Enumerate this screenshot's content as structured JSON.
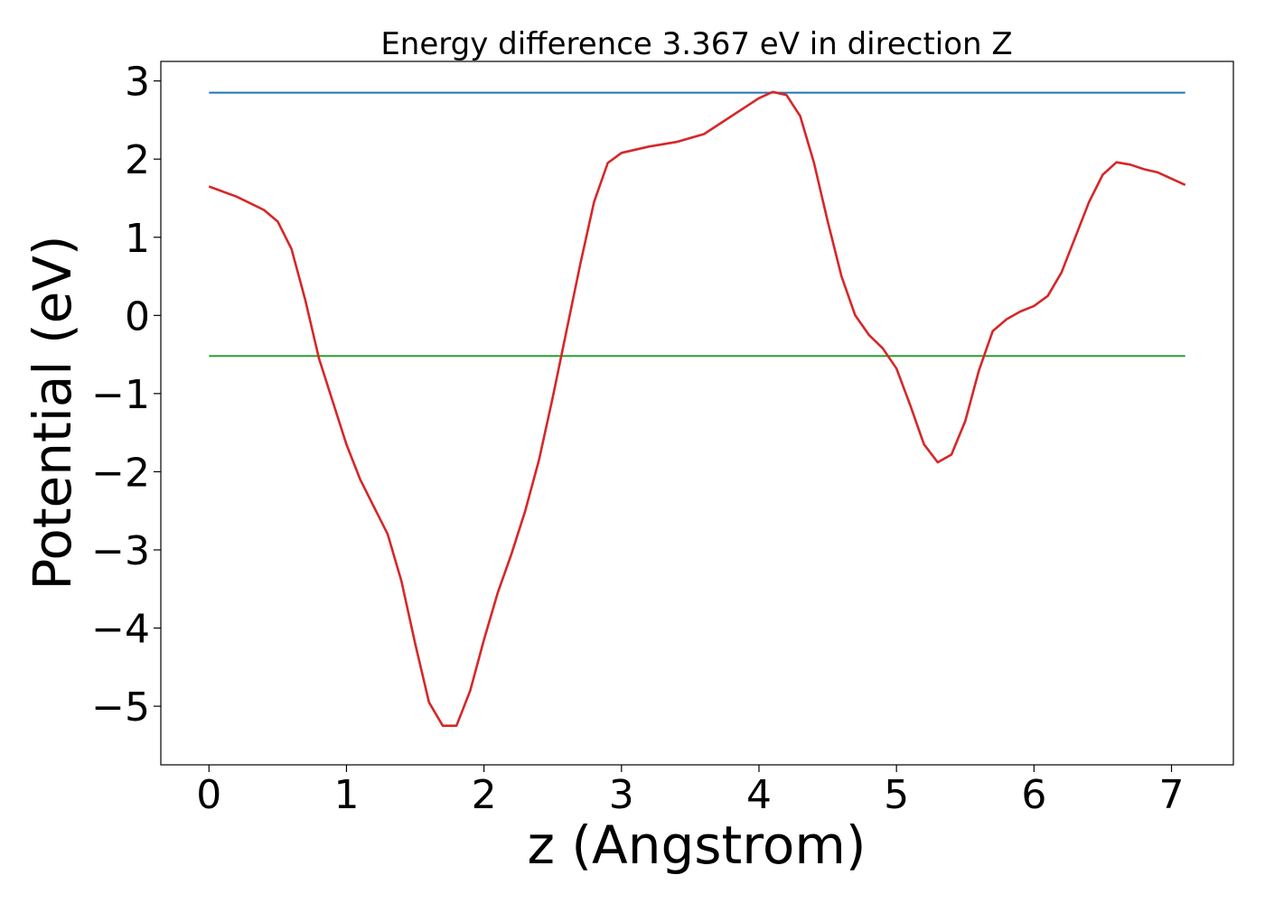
{
  "chart_data": {
    "type": "line",
    "title": "Energy difference 3.367 eV in direction Z",
    "xlabel": "z (Angstrom)",
    "ylabel": "Potential (eV)",
    "xlim": [
      -0.35,
      7.45
    ],
    "ylim": [
      -5.75,
      3.25
    ],
    "xticks": [
      0,
      1,
      2,
      3,
      4,
      5,
      6,
      7
    ],
    "xtick_labels": [
      "0",
      "1",
      "2",
      "3",
      "4",
      "5",
      "6",
      "7"
    ],
    "yticks": [
      3,
      2,
      1,
      0,
      -1,
      -2,
      -3,
      -4,
      -5
    ],
    "ytick_labels": [
      "3",
      "2",
      "1",
      "0",
      "−1",
      "−2",
      "−3",
      "−4",
      "−5"
    ],
    "grid": false,
    "series": [
      {
        "color": "#1f77b4",
        "x": [
          0,
          7.1
        ],
        "y": [
          2.85,
          2.85
        ]
      },
      {
        "color": "#2ca02c",
        "x": [
          0,
          7.1
        ],
        "y": [
          -0.52,
          -0.52
        ]
      },
      {
        "color": "#d62728",
        "x": [
          0,
          0.2,
          0.4,
          0.5,
          0.6,
          0.7,
          0.8,
          0.9,
          1.0,
          1.1,
          1.2,
          1.3,
          1.4,
          1.5,
          1.6,
          1.7,
          1.8,
          1.9,
          2.0,
          2.1,
          2.2,
          2.3,
          2.4,
          2.5,
          2.6,
          2.7,
          2.8,
          2.9,
          3.0,
          3.1,
          3.2,
          3.4,
          3.6,
          3.8,
          4.0,
          4.1,
          4.2,
          4.3,
          4.4,
          4.5,
          4.6,
          4.7,
          4.8,
          4.9,
          5.0,
          5.1,
          5.2,
          5.3,
          5.4,
          5.5,
          5.6,
          5.7,
          5.8,
          5.9,
          6.0,
          6.1,
          6.2,
          6.3,
          6.4,
          6.5,
          6.6,
          6.7,
          6.8,
          6.9,
          7.1
        ],
        "y": [
          1.65,
          1.52,
          1.35,
          1.2,
          0.85,
          0.2,
          -0.55,
          -1.1,
          -1.65,
          -2.1,
          -2.45,
          -2.8,
          -3.4,
          -4.2,
          -4.95,
          -5.25,
          -5.25,
          -4.8,
          -4.15,
          -3.55,
          -3.05,
          -2.5,
          -1.85,
          -1.05,
          -0.2,
          0.65,
          1.45,
          1.95,
          2.08,
          2.12,
          2.16,
          2.22,
          2.32,
          2.55,
          2.78,
          2.86,
          2.82,
          2.55,
          1.95,
          1.2,
          0.5,
          0.0,
          -0.25,
          -0.42,
          -0.68,
          -1.15,
          -1.65,
          -1.88,
          -1.78,
          -1.35,
          -0.7,
          -0.2,
          -0.05,
          0.05,
          0.12,
          0.25,
          0.55,
          1.0,
          1.45,
          1.8,
          1.96,
          1.93,
          1.87,
          1.83,
          1.67
        ]
      }
    ]
  }
}
